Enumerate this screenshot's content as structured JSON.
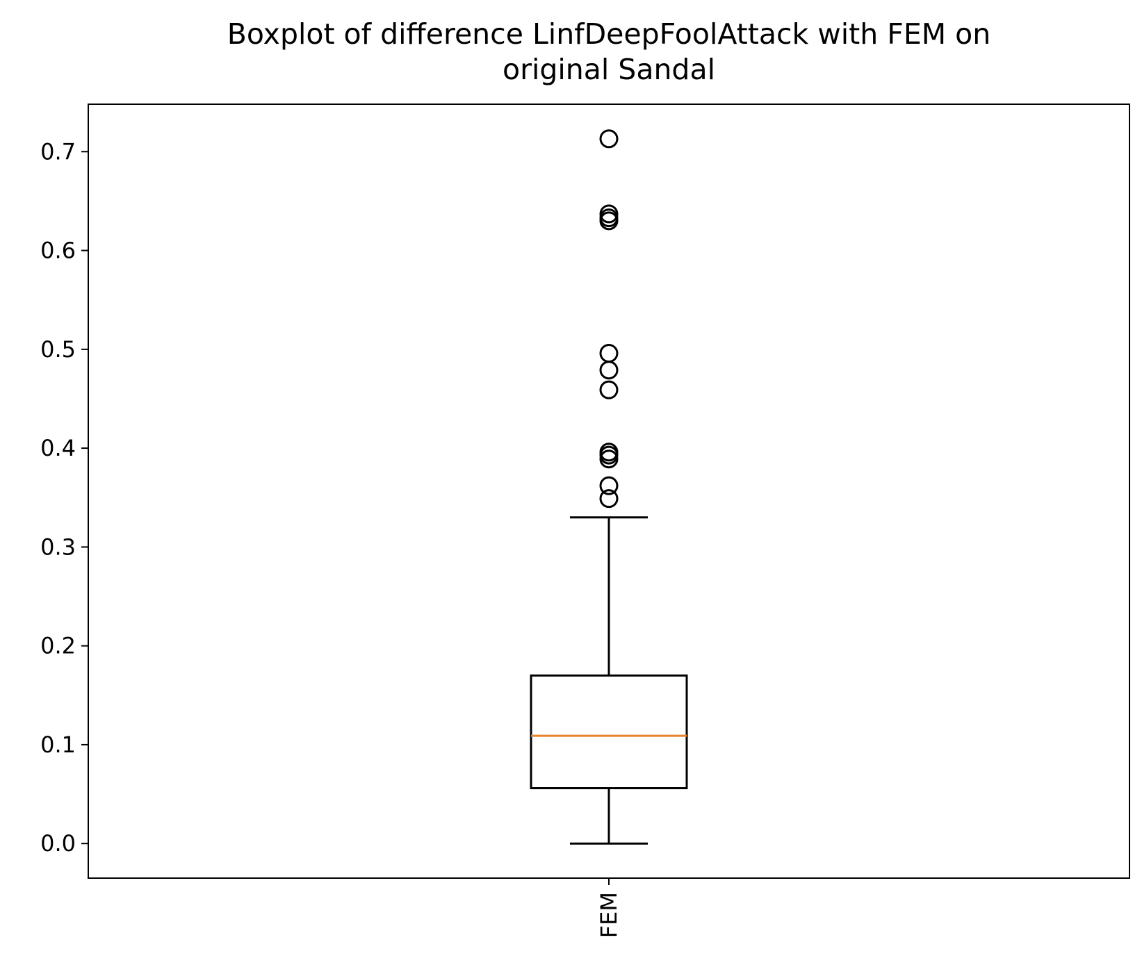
{
  "chart_data": {
    "type": "box",
    "title": "Boxplot of difference LinfDeepFoolAttack with FEM on original Sandal",
    "title_lines": [
      "Boxplot of difference LinfDeepFoolAttack with FEM on",
      "original Sandal"
    ],
    "xlabel": "",
    "ylabel": "",
    "categories": [
      "FEM"
    ],
    "ylim": [
      -0.035,
      0.748
    ],
    "yticks": [
      0.0,
      0.1,
      0.2,
      0.3,
      0.4,
      0.5,
      0.6,
      0.7
    ],
    "ytick_labels": [
      "0.0",
      "0.1",
      "0.2",
      "0.3",
      "0.4",
      "0.5",
      "0.6",
      "0.7"
    ],
    "grid": false,
    "boxes": [
      {
        "category": "FEM",
        "whisker_low": 0.0,
        "q1": 0.056,
        "median": 0.109,
        "q3": 0.17,
        "whisker_high": 0.33,
        "outliers": [
          0.349,
          0.362,
          0.389,
          0.393,
          0.396,
          0.459,
          0.479,
          0.496,
          0.63,
          0.633,
          0.637,
          0.713
        ]
      }
    ],
    "colors": {
      "box": "#000000",
      "median": "#e8822a",
      "outlier_edge": "#000000"
    }
  }
}
